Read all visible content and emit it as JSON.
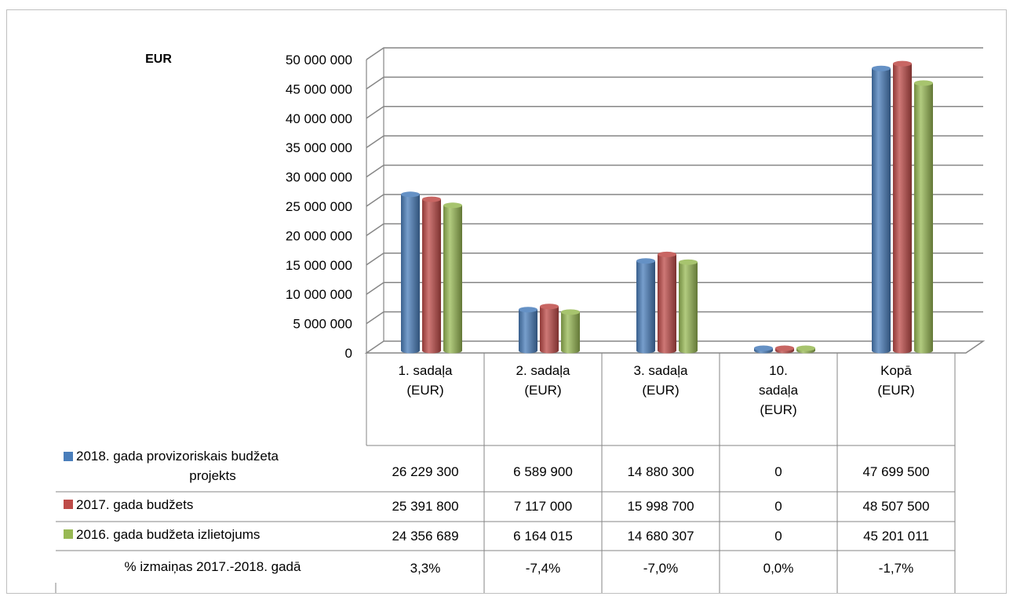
{
  "chart_data": {
    "type": "bar",
    "title": "",
    "ylabel": "EUR",
    "xlabel": "",
    "ylim": [
      0,
      50000000
    ],
    "ytick_step": 5000000,
    "ytick_labels": [
      "0",
      "5 000 000",
      "10 000 000",
      "15 000 000",
      "20 000 000",
      "25 000 000",
      "30 000 000",
      "35 000 000",
      "40 000 000",
      "45 000 000",
      "50 000 000"
    ],
    "grid": true,
    "style": "3d-cylinder",
    "categories": [
      [
        "1. sadaļa",
        "(EUR)"
      ],
      [
        "2. sadaļa",
        "(EUR)"
      ],
      [
        "3. sadaļa",
        "(EUR)"
      ],
      [
        "10.",
        "sadaļa",
        "(EUR)"
      ],
      [
        "Kopā",
        "(EUR)"
      ]
    ],
    "series": [
      {
        "name_lines": [
          "2018. gada provizoriskais budžeta",
          "projekts"
        ],
        "color": "#4a7ebb",
        "values": [
          26229300,
          6589900,
          14880300,
          0,
          47699500
        ],
        "labels": [
          "26 229 300",
          "6 589 900",
          "14 880 300",
          "0",
          "47 699 500"
        ]
      },
      {
        "name_lines": [
          "2017. gada budžets"
        ],
        "color": "#be4b48",
        "values": [
          25391800,
          7117000,
          15998700,
          0,
          48507500
        ],
        "labels": [
          "25 391 800",
          "7 117 000",
          "15 998 700",
          "0",
          "48 507 500"
        ]
      },
      {
        "name_lines": [
          "2016. gada budžeta izlietojums"
        ],
        "color": "#98b954",
        "values": [
          24356689,
          6164015,
          14680307,
          0,
          45201011
        ],
        "labels": [
          "24 356 689",
          "6 164 015",
          "14 680 307",
          "0",
          "45 201 011"
        ]
      }
    ],
    "extra_row": {
      "name": "% izmaiņas 2017.-2018. gadā",
      "labels": [
        "3,3%",
        "-7,4%",
        "-7,0%",
        "0,0%",
        "-1,7%"
      ]
    }
  }
}
